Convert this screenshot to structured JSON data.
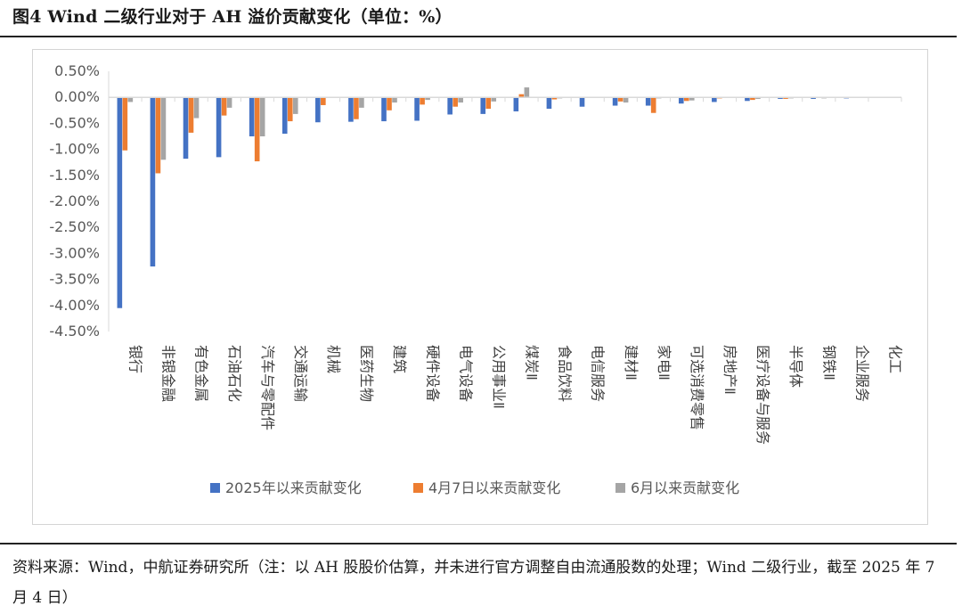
{
  "title": "图4  Wind 二级行业对于 AH 溢价贡献变化（单位：%）",
  "source_note": "资料来源：Wind，中航证券研究所（注：以 AH 股股价估算，并未进行官方调整自由流通股数的处理；Wind 二级行业，截至 2025 年 7 月 4 日）",
  "colors": {
    "series1": "#4472c4",
    "series2": "#ed7d31",
    "series3": "#a5a5a5",
    "axis": "#d9d9d9"
  },
  "chart_data": {
    "type": "bar",
    "ylim": [
      -4.5,
      0.5
    ],
    "yticks": [
      0.5,
      0.0,
      -0.5,
      -1.0,
      -1.5,
      -2.0,
      -2.5,
      -3.0,
      -3.5,
      -4.0,
      -4.5
    ],
    "ytick_labels": [
      "0.50%",
      "0.00%",
      "-0.50%",
      "-1.00%",
      "-1.50%",
      "-2.00%",
      "-2.50%",
      "-3.00%",
      "-3.50%",
      "-4.00%",
      "-4.50%"
    ],
    "categories": [
      "银行",
      "非银金融",
      "有色金属",
      "石油石化",
      "汽车与零配件",
      "交通运输",
      "机械",
      "医药生物",
      "建筑",
      "硬件设备",
      "电气设备",
      "公用事业Ⅱ",
      "煤炭Ⅱ",
      "食品饮料",
      "电信服务",
      "建材Ⅱ",
      "家电Ⅱ",
      "可选消费零售",
      "房地产Ⅱ",
      "医疗设备与服务",
      "半导体",
      "钢铁Ⅱ",
      "企业服务",
      "化工"
    ],
    "series": [
      {
        "name": "2025年以来贡献变化",
        "values": [
          -4.05,
          -3.25,
          -1.18,
          -1.15,
          -0.75,
          -0.7,
          -0.48,
          -0.47,
          -0.46,
          -0.45,
          -0.33,
          -0.32,
          -0.27,
          -0.22,
          -0.18,
          -0.16,
          -0.16,
          -0.12,
          -0.09,
          -0.07,
          -0.03,
          -0.03,
          -0.02,
          -0.01
        ]
      },
      {
        "name": "4月7日以来贡献变化",
        "values": [
          -1.02,
          -1.46,
          -0.68,
          -0.35,
          -1.23,
          -0.46,
          -0.15,
          -0.42,
          -0.25,
          -0.14,
          -0.18,
          -0.22,
          0.06,
          -0.04,
          -0.01,
          -0.08,
          -0.3,
          -0.07,
          -0.02,
          -0.05,
          -0.03,
          -0.01,
          0.0,
          0.0
        ]
      },
      {
        "name": "6月以来贡献变化",
        "values": [
          -0.09,
          -1.2,
          -0.4,
          -0.2,
          -0.75,
          -0.32,
          -0.01,
          -0.2,
          -0.1,
          -0.05,
          -0.1,
          -0.08,
          0.19,
          -0.02,
          -0.01,
          -0.1,
          -0.02,
          -0.06,
          -0.01,
          -0.03,
          -0.02,
          -0.02,
          -0.01,
          0.0
        ]
      }
    ],
    "legend_position": "bottom",
    "grid": false
  }
}
